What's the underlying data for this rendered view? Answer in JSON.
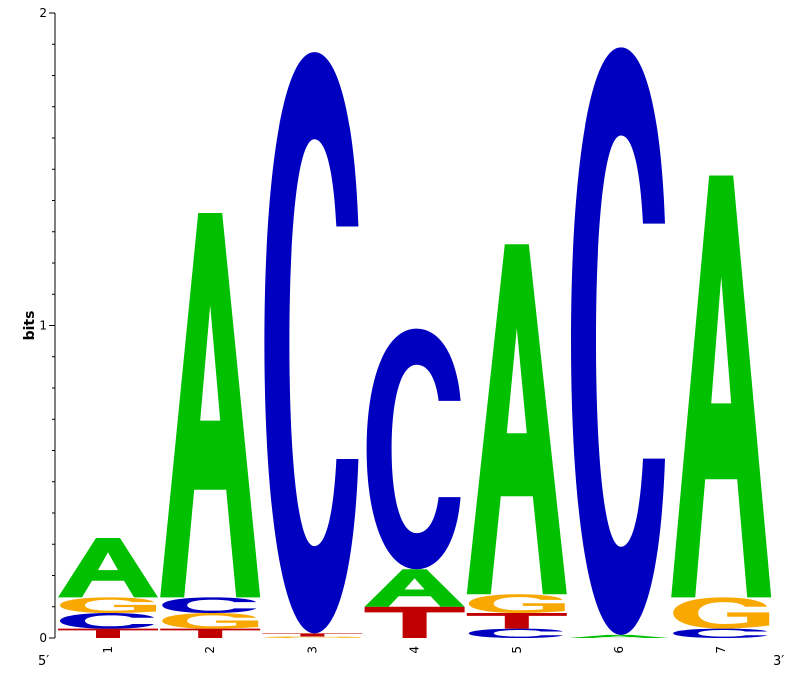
{
  "chart_data": {
    "type": "sequence-logo",
    "ylabel": "bits",
    "ylim": [
      0,
      2
    ],
    "yticks": [
      "0",
      "1",
      "2"
    ],
    "five_prime_label": "5′",
    "three_prime_label": "3′",
    "colors": {
      "A": "#00c000",
      "C": "#0000c0",
      "G": "#f8a800",
      "T": "#c00000"
    },
    "positions": [
      {
        "label": "1",
        "letters": [
          {
            "base": "T",
            "bits": 0.03
          },
          {
            "base": "C",
            "bits": 0.05
          },
          {
            "base": "G",
            "bits": 0.05
          },
          {
            "base": "A",
            "bits": 0.19
          }
        ]
      },
      {
        "label": "2",
        "letters": [
          {
            "base": "T",
            "bits": 0.03
          },
          {
            "base": "G",
            "bits": 0.05
          },
          {
            "base": "C",
            "bits": 0.05
          },
          {
            "base": "A",
            "bits": 1.23
          }
        ]
      },
      {
        "label": "3",
        "letters": [
          {
            "base": "G",
            "bits": 0.005
          },
          {
            "base": "T",
            "bits": 0.01
          },
          {
            "base": "C",
            "bits": 1.86
          }
        ]
      },
      {
        "label": "4",
        "letters": [
          {
            "base": "T",
            "bits": 0.1
          },
          {
            "base": "A",
            "bits": 0.12
          },
          {
            "base": "C",
            "bits": 0.77
          }
        ]
      },
      {
        "label": "5",
        "letters": [
          {
            "base": "C",
            "bits": 0.03
          },
          {
            "base": "T",
            "bits": 0.05
          },
          {
            "base": "G",
            "bits": 0.06
          },
          {
            "base": "A",
            "bits": 1.12
          }
        ]
      },
      {
        "label": "6",
        "letters": [
          {
            "base": "A",
            "bits": 0.01
          },
          {
            "base": "C",
            "bits": 1.88
          }
        ]
      },
      {
        "label": "7",
        "letters": [
          {
            "base": "C",
            "bits": 0.03
          },
          {
            "base": "G",
            "bits": 0.1
          },
          {
            "base": "A",
            "bits": 1.35
          }
        ]
      }
    ]
  }
}
